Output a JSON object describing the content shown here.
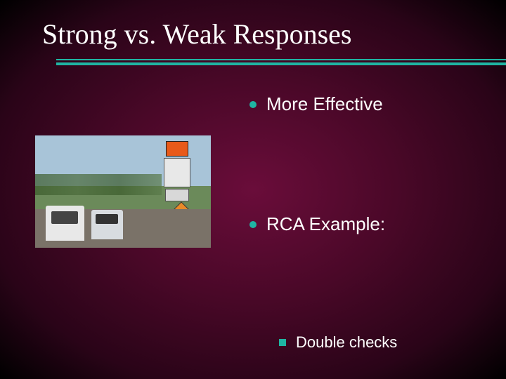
{
  "title": "Strong vs. Weak Responses",
  "colors": {
    "accent": "#1fb5a3",
    "text": "#ffffff"
  },
  "bullets": [
    {
      "label": "More Effective"
    },
    {
      "label": "RCA Example:"
    }
  ],
  "subBullets": [
    {
      "label": "Double checks"
    }
  ],
  "image": {
    "description": "work-zone-road-sign-photo"
  }
}
